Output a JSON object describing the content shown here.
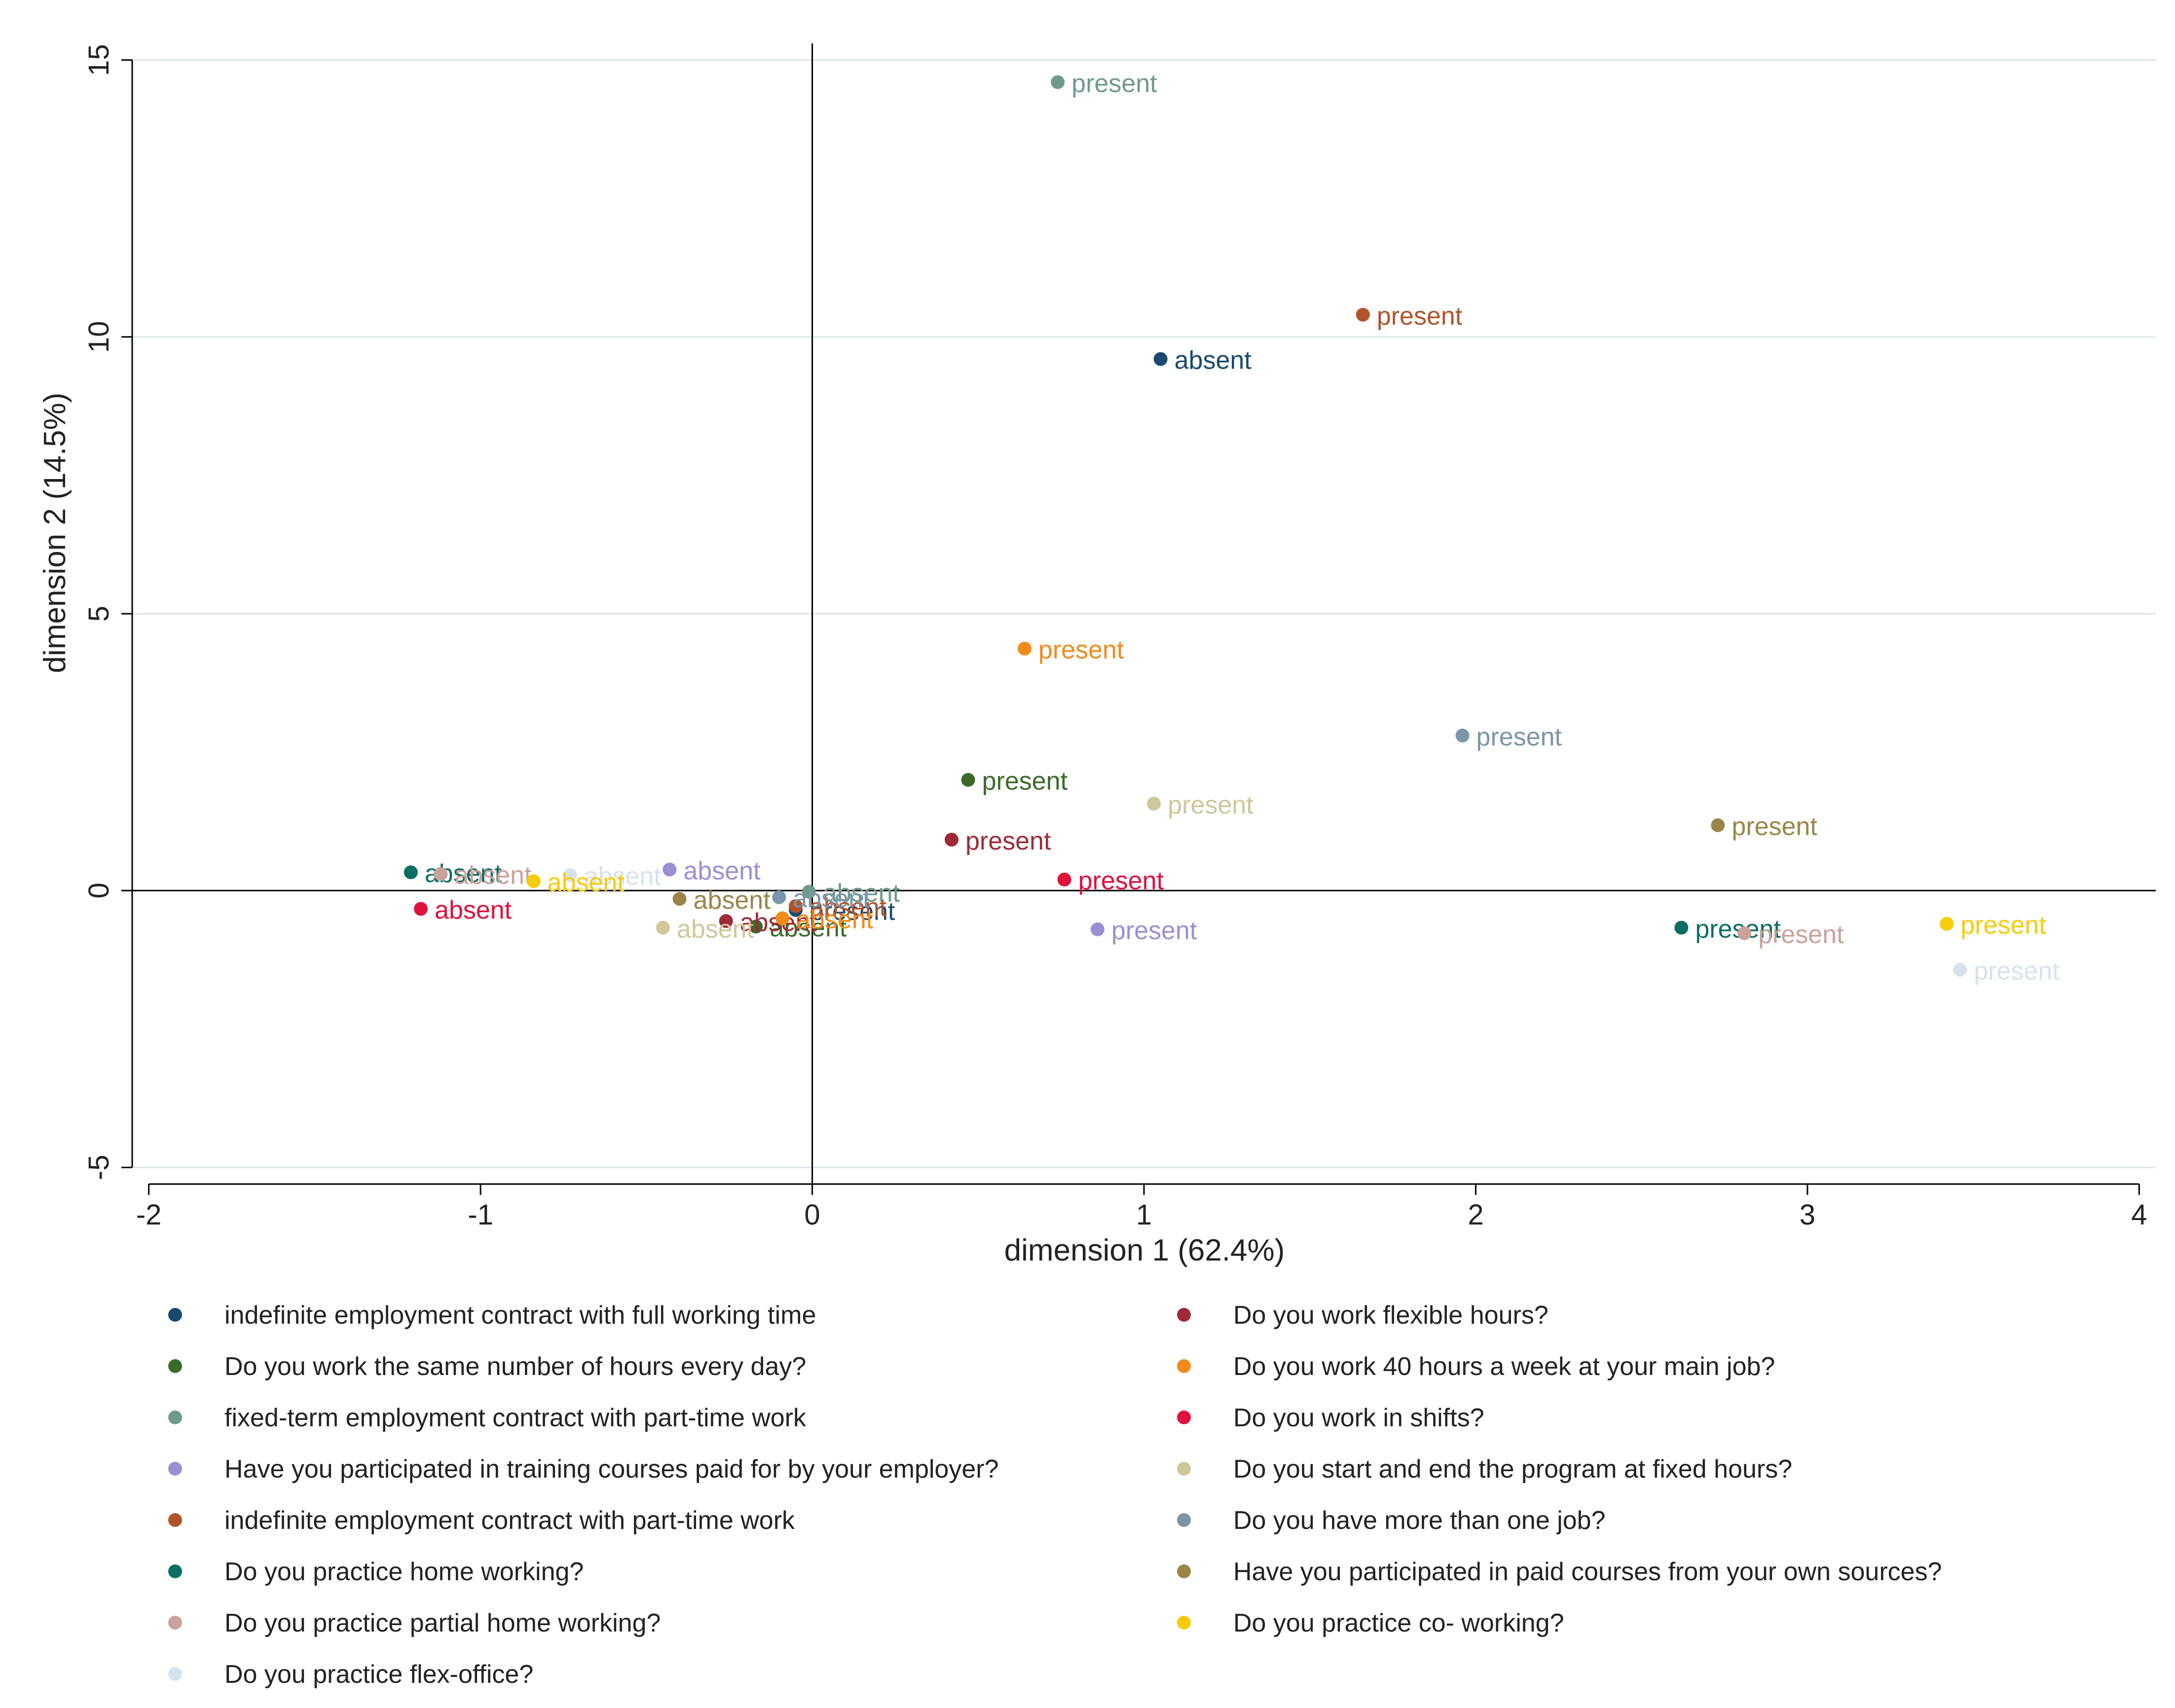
{
  "chart_data": {
    "type": "scatter",
    "title": "",
    "xlabel": "dimension 1 (62.4%)",
    "ylabel": "dimension 2 (14.5%)",
    "xlim": [
      -2.05,
      4.05
    ],
    "ylim": [
      -5.3,
      15.3
    ],
    "x_ticks": [
      -2,
      -1,
      0,
      1,
      2,
      3,
      4
    ],
    "y_ticks": [
      -5,
      0,
      5,
      10,
      15
    ],
    "grid": "horizontal",
    "legend_position": "bottom",
    "series": [
      {
        "name": "indefinite employment contract with full working time",
        "color": "#1a4a6e",
        "points": [
          {
            "x": 1.05,
            "y": 9.6,
            "label": "absent"
          },
          {
            "x": -0.05,
            "y": -0.35,
            "label": "present"
          }
        ]
      },
      {
        "name": "Do you work the same number of hours every day?",
        "color": "#3a6b2a",
        "points": [
          {
            "x": 0.47,
            "y": 2.0,
            "label": "present"
          },
          {
            "x": -0.17,
            "y": -0.65,
            "label": "absent"
          }
        ]
      },
      {
        "name": "fixed-term employment contract with part-time work",
        "color": "#6f9a8a",
        "points": [
          {
            "x": 0.74,
            "y": 14.6,
            "label": "present"
          },
          {
            "x": -0.01,
            "y": -0.02,
            "label": "absent"
          }
        ]
      },
      {
        "name": "Have you participated in training courses paid for by your employer?",
        "color": "#9b8fd4",
        "points": [
          {
            "x": 0.86,
            "y": -0.7,
            "label": "present"
          },
          {
            "x": -0.43,
            "y": 0.38,
            "label": "absent"
          }
        ]
      },
      {
        "name": "indefinite employment contract with part-time work",
        "color": "#b0542c",
        "points": [
          {
            "x": 1.66,
            "y": 10.4,
            "label": "present"
          },
          {
            "x": -0.05,
            "y": -0.28,
            "label": "absent"
          }
        ]
      },
      {
        "name": "Do you practice home working?",
        "color": "#0d6e63",
        "points": [
          {
            "x": 2.62,
            "y": -0.67,
            "label": "present"
          },
          {
            "x": -1.21,
            "y": 0.33,
            "label": "absent"
          }
        ]
      },
      {
        "name": "Do you practice partial home working?",
        "color": "#c9a29a",
        "points": [
          {
            "x": 2.81,
            "y": -0.77,
            "label": "present"
          },
          {
            "x": -1.12,
            "y": 0.3,
            "label": "absent"
          }
        ]
      },
      {
        "name": "Do you practice flex-office?",
        "color": "#d6e3ee",
        "points": [
          {
            "x": 3.46,
            "y": -1.43,
            "label": "present"
          },
          {
            "x": -0.73,
            "y": 0.28,
            "label": "absent"
          }
        ]
      },
      {
        "name": "Do you work flexible hours?",
        "color": "#9e2a38",
        "points": [
          {
            "x": 0.42,
            "y": 0.92,
            "label": "present"
          },
          {
            "x": -0.26,
            "y": -0.55,
            "label": "absent"
          }
        ]
      },
      {
        "name": "Do you work 40 hours a week at your main job?",
        "color": "#f28a1a",
        "points": [
          {
            "x": 0.64,
            "y": 4.37,
            "label": "present"
          },
          {
            "x": -0.09,
            "y": -0.5,
            "label": "absent"
          }
        ]
      },
      {
        "name": "Do you work in shifts?",
        "color": "#e0103f",
        "points": [
          {
            "x": 0.76,
            "y": 0.2,
            "label": "present"
          },
          {
            "x": -1.18,
            "y": -0.33,
            "label": "absent"
          }
        ]
      },
      {
        "name": "Do you start and end the program at fixed hours?",
        "color": "#cfc79a",
        "points": [
          {
            "x": 1.03,
            "y": 1.57,
            "label": "present"
          },
          {
            "x": -0.45,
            "y": -0.67,
            "label": "absent"
          }
        ]
      },
      {
        "name": "Do you have more than one job?",
        "color": "#7a96a8",
        "points": [
          {
            "x": 1.96,
            "y": 2.8,
            "label": "present"
          },
          {
            "x": -0.1,
            "y": -0.12,
            "label": "absent"
          }
        ]
      },
      {
        "name": "Have you participated in paid courses from your own sources?",
        "color": "#9a8548",
        "points": [
          {
            "x": 2.73,
            "y": 1.18,
            "label": "present"
          },
          {
            "x": -0.4,
            "y": -0.15,
            "label": "absent"
          }
        ]
      },
      {
        "name": "Do you practice co- working?",
        "color": "#f7cc0a",
        "points": [
          {
            "x": 3.42,
            "y": -0.6,
            "label": "present"
          },
          {
            "x": -0.84,
            "y": 0.17,
            "label": "absent"
          }
        ]
      }
    ]
  }
}
